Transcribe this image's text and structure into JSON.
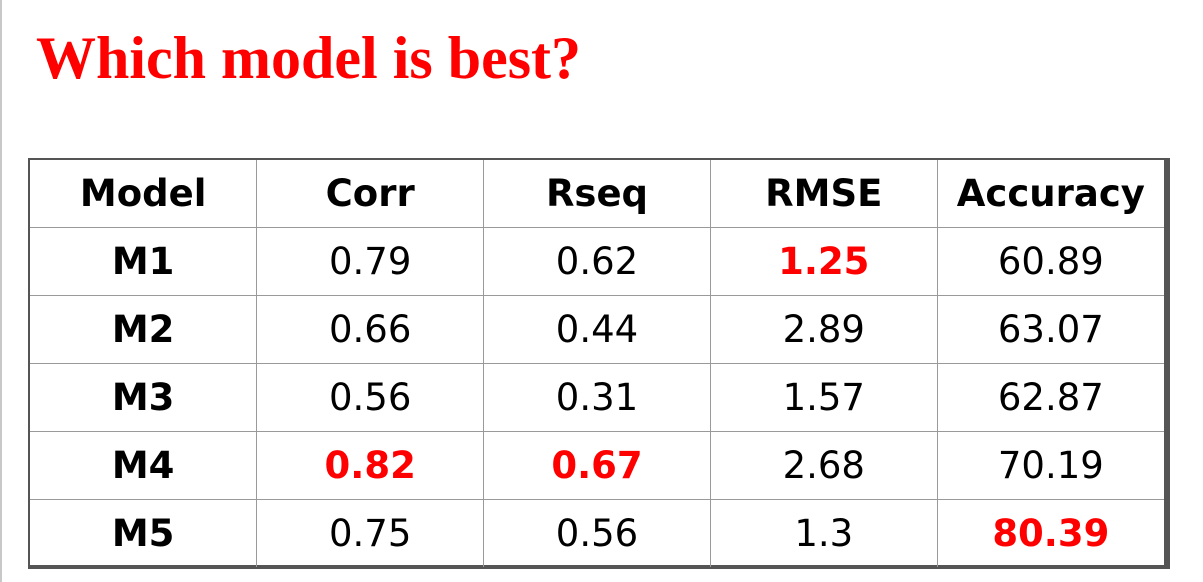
{
  "title": "Which model is best?",
  "accent_color": "#ff0000",
  "table": {
    "columns": [
      "Model",
      "Corr",
      "Rseq",
      "RMSE",
      "Accuracy"
    ],
    "rows": [
      {
        "model": "M1",
        "corr": "0.79",
        "rseq": "0.62",
        "rmse": "1.25",
        "accuracy": "60.89"
      },
      {
        "model": "M2",
        "corr": "0.66",
        "rseq": "0.44",
        "rmse": "2.89",
        "accuracy": "63.07"
      },
      {
        "model": "M3",
        "corr": "0.56",
        "rseq": "0.31",
        "rmse": "1.57",
        "accuracy": "62.87"
      },
      {
        "model": "M4",
        "corr": "0.82",
        "rseq": "0.67",
        "rmse": "2.68",
        "accuracy": "70.19"
      },
      {
        "model": "M5",
        "corr": "0.75",
        "rseq": "0.56",
        "rmse": "1.3",
        "accuracy": "80.39"
      }
    ],
    "highlighted": {
      "corr": "M4",
      "rseq": "M4",
      "rmse": "M1",
      "accuracy": "M5"
    }
  }
}
